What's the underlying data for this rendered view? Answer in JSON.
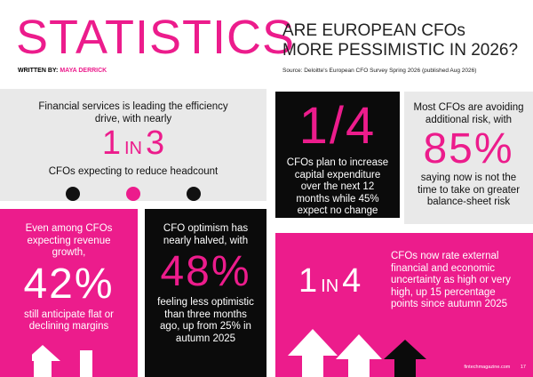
{
  "header": {
    "title": "STATISTICS",
    "byline_label": "WRITTEN BY:",
    "author": "MAYA DERRICK",
    "headline_line1": "ARE EUROPEAN CFOs",
    "headline_line2": "MORE PESSIMISTIC IN 2026?",
    "source": "Source: Deloitte's European CFO Survey Spring 2026 (published Aug 2026)"
  },
  "panels": [
    {
      "intro": "Financial services is leading the efficiency drive, with nearly",
      "stat_number": "1",
      "stat_join": "IN",
      "stat_total": "3",
      "caption": "CFOs expecting to reduce headcount"
    },
    {
      "stat": "1/4",
      "caption": "CFOs plan to increase capital expenditure over the next 12 months while 45% expect no change"
    },
    {
      "intro": "Most CFOs are avoiding additional risk, with",
      "stat": "85%",
      "caption": "saying now is not the time to take on greater balance-sheet risk"
    },
    {
      "intro": "Even among CFOs expecting revenue growth,",
      "stat": "42%",
      "caption": "still anticipate flat or declining margins"
    },
    {
      "intro": "CFO optimism has nearly halved, with",
      "stat": "48%",
      "caption": "feeling less optimistic than three months ago, up from 25% in autumn 2025"
    },
    {
      "stat_number": "1",
      "stat_join": "IN",
      "stat_total": "4",
      "caption": "CFOs now rate external financial and economic uncertainty as high or very high, up 15 percentage points since autumn 2025"
    }
  ],
  "footer": {
    "website": "fintechmagazine.com",
    "page": "17"
  }
}
